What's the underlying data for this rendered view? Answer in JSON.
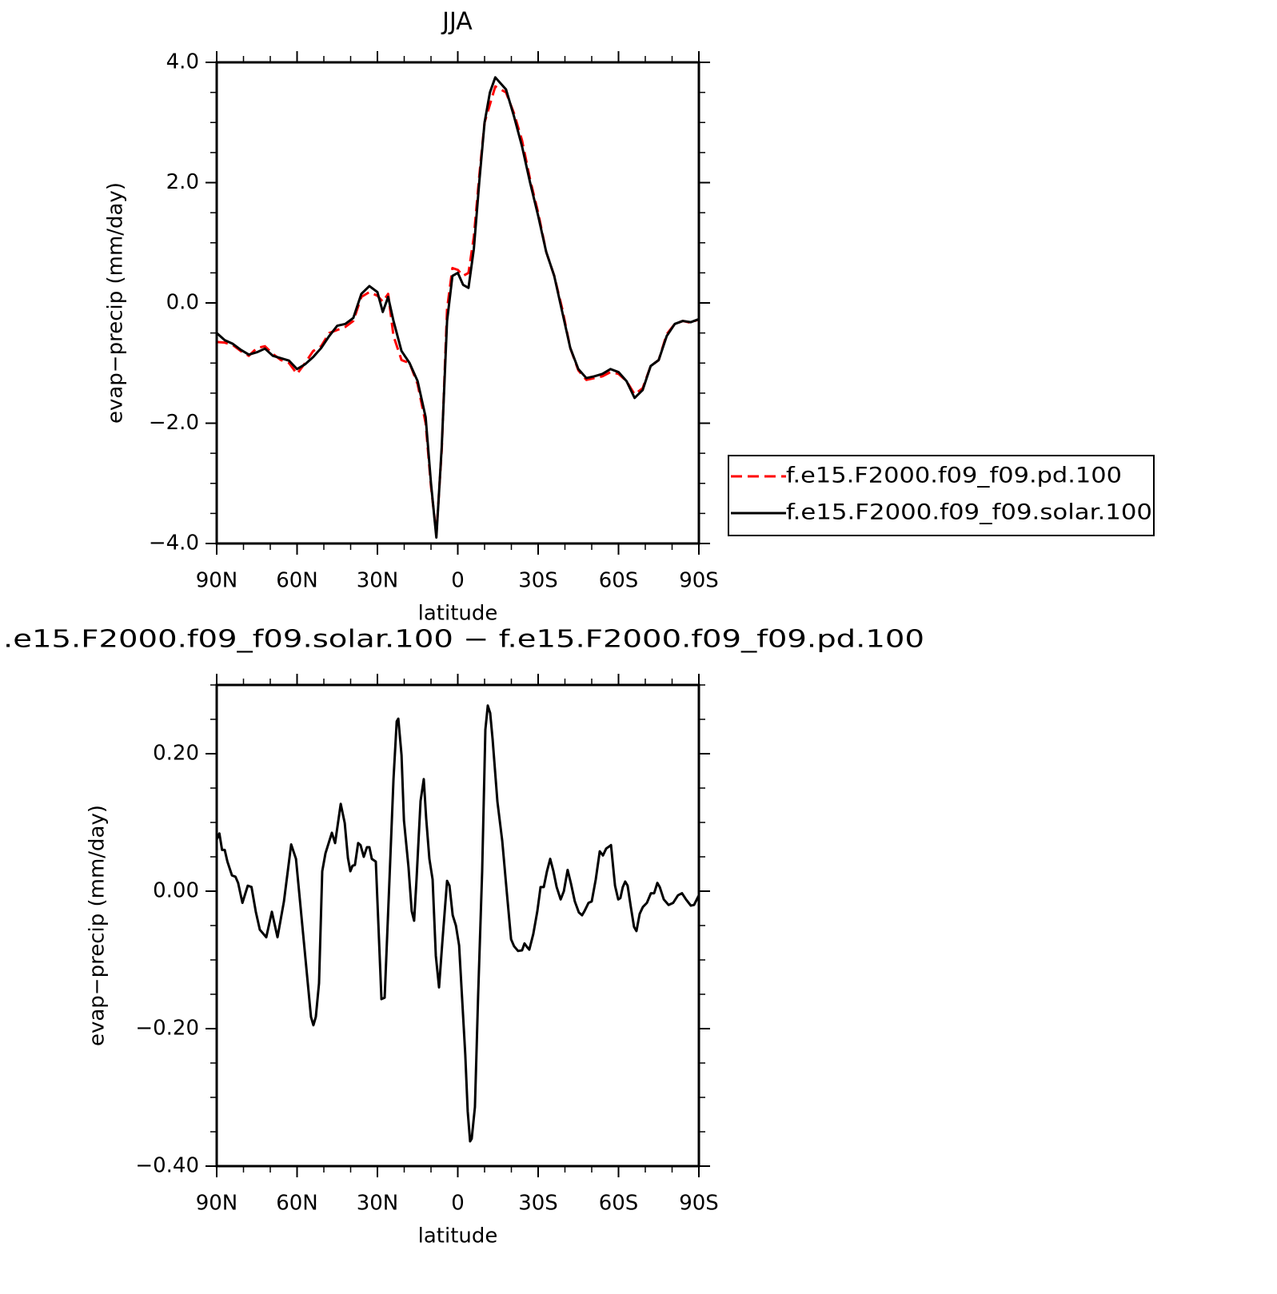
{
  "chart_data": [
    {
      "type": "line",
      "title": "JJA",
      "xlabel": "latitude",
      "ylabel": "evap−precip (mm/day)",
      "xlim": [
        90,
        -90
      ],
      "xticks": [
        {
          "value": 90,
          "label": "90N"
        },
        {
          "value": 60,
          "label": "60N"
        },
        {
          "value": 30,
          "label": "30N"
        },
        0,
        {
          "value": -30,
          "label": "30S"
        },
        {
          "value": -60,
          "label": "60S"
        },
        {
          "value": -90,
          "label": "90S"
        }
      ],
      "ylim": [
        -4,
        4
      ],
      "yticks": [
        {
          "value": -4,
          "label": "−4.0"
        },
        {
          "value": -2,
          "label": "−2.0"
        },
        {
          "value": 0,
          "label": "0.0"
        },
        {
          "value": 2,
          "label": "2.0"
        },
        {
          "value": 4,
          "label": "4.0"
        }
      ],
      "legend": "right",
      "x": [
        90,
        87,
        84,
        81,
        78,
        75,
        72,
        69,
        66,
        63,
        60,
        57,
        54,
        51,
        48,
        45,
        42,
        39,
        36,
        33,
        30,
        28,
        26,
        24,
        21,
        18,
        15,
        12,
        10,
        8,
        6,
        4,
        2,
        0,
        -2,
        -4,
        -6,
        -8,
        -10,
        -12,
        -14,
        -16,
        -18,
        -21,
        -24,
        -27,
        -30,
        -33,
        -36,
        -39,
        -42,
        -45,
        -48,
        -51,
        -54,
        -57,
        -60,
        -63,
        -66,
        -69,
        -72,
        -75,
        -78,
        -81,
        -84,
        -87,
        -90
      ],
      "series": [
        {
          "name": "f.e15.F2000.f09_f09.pd.100",
          "color": "#ff0000",
          "line_style": "dashed",
          "values": [
            -0.65,
            -0.66,
            -0.7,
            -0.8,
            -0.88,
            -0.75,
            -0.72,
            -0.85,
            -0.95,
            -1.0,
            -1.18,
            -1.0,
            -0.8,
            -0.72,
            -0.5,
            -0.45,
            -0.4,
            -0.3,
            0.1,
            0.18,
            0.12,
            0.02,
            0.15,
            -0.55,
            -0.95,
            -1.0,
            -1.35,
            -2.0,
            -3.05,
            -3.85,
            -2.45,
            -0.1,
            0.58,
            0.55,
            0.45,
            0.5,
            1.1,
            2.1,
            3.0,
            3.3,
            3.6,
            3.55,
            3.5,
            3.15,
            2.7,
            2.05,
            1.5,
            0.85,
            0.45,
            -0.1,
            -0.75,
            -1.12,
            -1.28,
            -1.25,
            -1.22,
            -1.15,
            -1.18,
            -1.3,
            -1.52,
            -1.42,
            -1.05,
            -0.95,
            -0.52,
            -0.35,
            -0.3,
            -0.33,
            -0.27
          ]
        },
        {
          "name": "f.e15.F2000.f09_f09.solar.100",
          "color": "#000000",
          "line_style": "solid",
          "values": [
            -0.5,
            -0.62,
            -0.68,
            -0.78,
            -0.86,
            -0.82,
            -0.76,
            -0.88,
            -0.92,
            -0.96,
            -1.1,
            -1.02,
            -0.9,
            -0.75,
            -0.55,
            -0.38,
            -0.35,
            -0.25,
            0.15,
            0.28,
            0.18,
            -0.15,
            0.1,
            -0.3,
            -0.8,
            -1.0,
            -1.3,
            -1.9,
            -3.0,
            -3.9,
            -2.4,
            -0.3,
            0.45,
            0.5,
            0.3,
            0.25,
            0.9,
            2.0,
            3.0,
            3.5,
            3.75,
            3.65,
            3.55,
            3.1,
            2.6,
            2.0,
            1.45,
            0.85,
            0.45,
            -0.15,
            -0.75,
            -1.1,
            -1.25,
            -1.22,
            -1.18,
            -1.1,
            -1.15,
            -1.3,
            -1.58,
            -1.45,
            -1.05,
            -0.95,
            -0.55,
            -0.35,
            -0.3,
            -0.32,
            -0.27
          ]
        }
      ]
    },
    {
      "type": "line",
      "title": ".e15.F2000.f09_f09.solar.100 − f.e15.F2000.f09_f09.pd.100",
      "xlabel": "latitude",
      "ylabel": "evap−precip (mm/day)",
      "xlim": [
        90,
        -90
      ],
      "xticks": [
        {
          "value": 90,
          "label": "90N"
        },
        {
          "value": 60,
          "label": "60N"
        },
        {
          "value": 30,
          "label": "30N"
        },
        0,
        {
          "value": -30,
          "label": "30S"
        },
        {
          "value": -60,
          "label": "60S"
        },
        {
          "value": -90,
          "label": "90S"
        }
      ],
      "ylim": [
        -0.4,
        0.3
      ],
      "yticks": [
        {
          "value": -0.4,
          "label": "−0.40"
        },
        {
          "value": -0.2,
          "label": "−0.20"
        },
        {
          "value": 0,
          "label": "0.00"
        },
        {
          "value": 0.2,
          "label": "0.20"
        }
      ],
      "color": "#000000",
      "x": [
        90,
        89,
        88,
        87,
        86,
        84.3,
        83,
        82,
        80.4,
        78.4,
        77,
        75.4,
        73.9,
        71.5,
        69.4,
        67.3,
        64.9,
        62.2,
        60.4,
        58.4,
        54.8,
        53.9,
        53,
        51.8,
        50.6,
        49.4,
        47,
        45.8,
        43.7,
        42.2,
        41,
        40.1,
        39.3,
        38.4,
        37.2,
        36.3,
        35.1,
        33.9,
        33,
        32.1,
        30.6,
        28.5,
        27.3,
        25.5,
        24,
        22.8,
        22.2,
        21,
        20.1,
        18.4,
        17.2,
        16.3,
        15.4,
        13.9,
        12.7,
        11.8,
        10.6,
        9.4,
        8.2,
        7,
        5.8,
        4,
        3.1,
        1.9,
        0.7,
        -0.5,
        -1.6,
        -2.8,
        -3.7,
        -4.6,
        -5.2,
        -6.4,
        -7.6,
        -9.1,
        -10.3,
        -11.2,
        -12.1,
        -13,
        -14.8,
        -16.6,
        -18.4,
        -19.9,
        -21,
        -22.5,
        -24,
        -24.9,
        -25.8,
        -26.7,
        -28.2,
        -29.7,
        -30.9,
        -32.1,
        -33.3,
        -34.5,
        -35.7,
        -36.9,
        -38.4,
        -39.6,
        -41,
        -42.2,
        -43.7,
        -45.2,
        -46.4,
        -47.3,
        -48.8,
        -50,
        -51.5,
        -53,
        -54.2,
        -55.4,
        -57.2,
        -58.7,
        -59.9,
        -60.7,
        -61.6,
        -62.5,
        -63.4,
        -64.6,
        -65.8,
        -66.7,
        -67.9,
        -69.1,
        -70.6,
        -72.1,
        -73.3,
        -74.5,
        -75.4,
        -76.9,
        -78.7,
        -80.4,
        -82.2,
        -83.7,
        -85.2,
        -87,
        -88.2,
        -90
      ],
      "values": [
        0.075,
        0.084,
        0.06,
        0.06,
        0.043,
        0.023,
        0.021,
        0.012,
        -0.017,
        0.008,
        0.006,
        -0.03,
        -0.056,
        -0.067,
        -0.03,
        -0.067,
        -0.015,
        0.068,
        0.047,
        -0.035,
        -0.183,
        -0.195,
        -0.183,
        -0.134,
        0.029,
        0.055,
        0.085,
        0.07,
        0.127,
        0.099,
        0.048,
        0.029,
        0.037,
        0.038,
        0.07,
        0.067,
        0.05,
        0.064,
        0.064,
        0.047,
        0.043,
        -0.157,
        -0.155,
        0.017,
        0.163,
        0.247,
        0.251,
        0.198,
        0.103,
        0.035,
        -0.029,
        -0.043,
        0.017,
        0.131,
        0.163,
        0.106,
        0.047,
        0.017,
        -0.094,
        -0.14,
        -0.076,
        0.015,
        0.008,
        -0.035,
        -0.05,
        -0.079,
        -0.155,
        -0.238,
        -0.32,
        -0.364,
        -0.36,
        -0.314,
        -0.151,
        0.029,
        0.235,
        0.27,
        0.259,
        0.221,
        0.13,
        0.073,
        -0.006,
        -0.07,
        -0.08,
        -0.087,
        -0.086,
        -0.076,
        -0.081,
        -0.085,
        -0.062,
        -0.029,
        0.006,
        0.006,
        0.029,
        0.047,
        0.029,
        0.006,
        -0.012,
        0,
        0.031,
        0.012,
        -0.015,
        -0.031,
        -0.035,
        -0.029,
        -0.017,
        -0.015,
        0.017,
        0.058,
        0.052,
        0.062,
        0.067,
        0.008,
        -0.012,
        -0.01,
        0.006,
        0.014,
        0.008,
        -0.023,
        -0.052,
        -0.058,
        -0.033,
        -0.023,
        -0.017,
        -0.003,
        -0.003,
        0.012,
        0.006,
        -0.012,
        -0.02,
        -0.017,
        -0.006,
        -0.003,
        -0.012,
        -0.021,
        -0.02,
        -0.006
      ]
    }
  ]
}
